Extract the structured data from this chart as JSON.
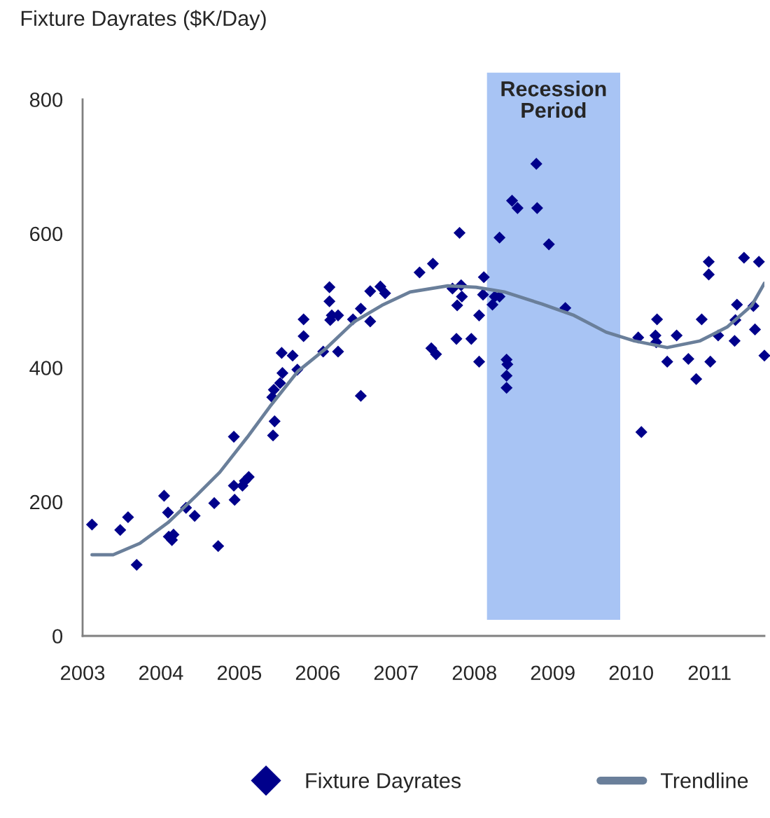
{
  "chart_data": {
    "type": "scatter",
    "ylabel": "Fixture Dayrates ($K/Day)",
    "xlim": [
      2003,
      2011.7
    ],
    "xticks": [
      2003,
      2004,
      2005,
      2006,
      2007,
      2008,
      2009,
      2010,
      2011
    ],
    "ylim": [
      0,
      800
    ],
    "yticks": [
      0,
      200,
      400,
      600,
      800
    ],
    "grid": false,
    "legend": "bottom",
    "bands": [
      {
        "axis": "x",
        "from": 2008.16,
        "to": 2009.86,
        "label": "Recession\nPeriod",
        "color": "#a8c4f4"
      }
    ],
    "series": [
      {
        "name": "Fixture Dayrates",
        "color": "#00008b",
        "marker": "diamond",
        "x": [
          2003.12,
          2003.48,
          2003.58,
          2003.69,
          2004.04,
          2004.09,
          2004.1,
          2004.16,
          2004.14,
          2004.32,
          2004.43,
          2004.68,
          2004.73,
          2004.93,
          2004.94,
          2004.93,
          2005.04,
          2005.07,
          2005.12,
          2005.43,
          2005.45,
          2005.42,
          2005.44,
          2005.52,
          2005.55,
          2005.54,
          2005.68,
          2005.74,
          2005.82,
          2005.82,
          2006.07,
          2006.26,
          2006.55,
          2006.15,
          2006.15,
          2006.16,
          2006.18,
          2006.26,
          2006.45,
          2006.55,
          2006.67,
          2006.67,
          2006.8,
          2006.86,
          2007.3,
          2007.47,
          2007.45,
          2007.51,
          2007.81,
          2007.72,
          2007.83,
          2007.84,
          2007.78,
          2008.06,
          2007.77,
          2007.96,
          2008.06,
          2008.12,
          2008.11,
          2008.26,
          2008.32,
          2008.23,
          2008.32,
          2008.48,
          2008.55,
          2008.79,
          2008.8,
          2008.95,
          2009.16,
          2008.41,
          2008.42,
          2008.41,
          2008.41,
          2010.13,
          2010.46,
          2010.73,
          2010.83,
          2011.01,
          2011.7,
          2010.09,
          2010.31,
          2010.33,
          2010.32,
          2010.58,
          2010.9,
          2010.99,
          2010.99,
          2011.11,
          2011.32,
          2011.35,
          2011.33,
          2011.44,
          2011.63,
          2011.56,
          2011.58
        ],
        "values": [
          166,
          158,
          177,
          106,
          209,
          184,
          148,
          151,
          143,
          191,
          179,
          198,
          134,
          224,
          203,
          297,
          224,
          231,
          237,
          299,
          320,
          356,
          367,
          377,
          392,
          422,
          418,
          397,
          447,
          472,
          424,
          424,
          358,
          520,
          499,
          471,
          478,
          478,
          472,
          488,
          469,
          514,
          521,
          511,
          542,
          555,
          429,
          420,
          601,
          518,
          523,
          506,
          493,
          478,
          443,
          443,
          409,
          535,
          509,
          506,
          506,
          494,
          594,
          649,
          638,
          704,
          638,
          584,
          489,
          412,
          405,
          388,
          370,
          304,
          409,
          413,
          383,
          409,
          418,
          445,
          448,
          472,
          438,
          448,
          472,
          558,
          539,
          448,
          440,
          494,
          471,
          564,
          558,
          492,
          457
        ]
      },
      {
        "name": "Trendline",
        "type": "line",
        "color": "#6a7f9a",
        "line_style": "solid",
        "x": [
          2003.12,
          2003.39,
          2003.73,
          2004.09,
          2004.45,
          2004.75,
          2005.1,
          2005.39,
          2005.75,
          2006.1,
          2006.46,
          2006.82,
          2007.18,
          2007.66,
          2008.02,
          2008.38,
          2008.86,
          2009.27,
          2009.68,
          2010.04,
          2010.46,
          2010.88,
          2011.23,
          2011.54,
          2011.7
        ],
        "values": [
          121,
          121,
          138,
          169,
          209,
          244,
          296,
          342,
          395,
          428,
          468,
          493,
          513,
          522,
          520,
          513,
          495,
          478,
          453,
          440,
          430,
          440,
          461,
          493,
          526
        ]
      }
    ]
  }
}
